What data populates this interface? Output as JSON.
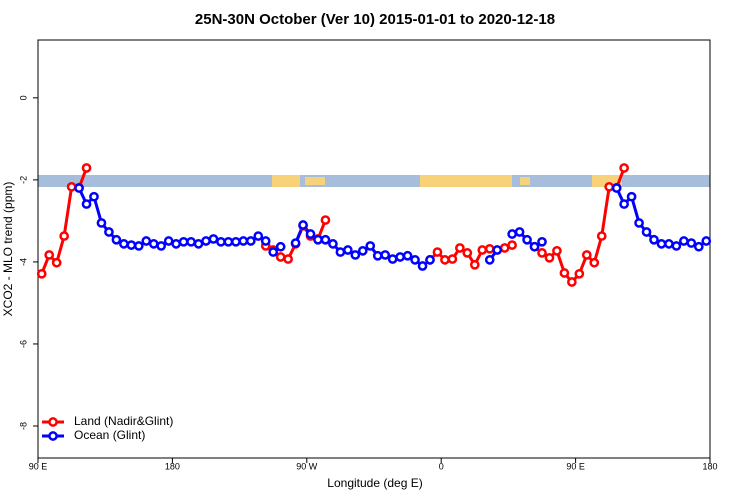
{
  "chart_data": {
    "type": "line",
    "title": "25N-30N October (Ver 10)   2015-01-01 to 2020-12-18",
    "x_label": "Longitude (deg E)",
    "y_label": "XCO2 - MLO trend (ppm)",
    "x": [
      92.5,
      97.5,
      102.5,
      107.5,
      112.5,
      117.5,
      122.5,
      127.5,
      132.5,
      137.5,
      142.5,
      147.5,
      152.5,
      157.5,
      162.5,
      167.5,
      172.5,
      177.5,
      182.5,
      187.5,
      192.5,
      197.5,
      202.5,
      207.5,
      212.5,
      217.5,
      222.5,
      227.5,
      232.5,
      237.5,
      242.5,
      247.5,
      252.5,
      257.5,
      262.5,
      267.5,
      272.5,
      277.5,
      282.5,
      287.5,
      292.5,
      297.5,
      302.5,
      307.5,
      312.5,
      317.5,
      322.5,
      327.5,
      332.5,
      337.5,
      342.5,
      347.5,
      352.5,
      357.5,
      362.5,
      367.5,
      372.5,
      377.5,
      382.5,
      387.5,
      392.5,
      397.5,
      402.5,
      407.5,
      412.5,
      417.5,
      422.5,
      427.5,
      432.5,
      437.5,
      442.5,
      447.5,
      452.5,
      457.5,
      462.5,
      467.5,
      472.5,
      477.5,
      482.5,
      487.5,
      492.5,
      497.5,
      502.5,
      507.5,
      512.5,
      517.5,
      522.5,
      527.5,
      532.5,
      537.5
    ],
    "series": [
      {
        "name": "Land (Nadir&Glint)",
        "color": "#ff0000",
        "values": [
          -4.29,
          -3.83,
          -4.02,
          -3.37,
          -2.17,
          -2.19,
          -1.71,
          null,
          null,
          null,
          null,
          null,
          null,
          null,
          null,
          null,
          null,
          null,
          null,
          null,
          null,
          null,
          null,
          null,
          null,
          null,
          null,
          null,
          null,
          null,
          -3.61,
          -3.71,
          -3.88,
          -3.93,
          -3.56,
          -3.12,
          -3.37,
          -3.44,
          -2.98,
          null,
          null,
          null,
          null,
          null,
          null,
          null,
          null,
          null,
          null,
          null,
          null,
          null,
          -3.95,
          -3.76,
          -3.95,
          -3.93,
          -3.66,
          -3.78,
          -4.07,
          -3.71,
          -3.68,
          null,
          -3.66,
          -3.59,
          null,
          null,
          -3.63,
          -3.78,
          -3.9,
          -3.73,
          -4.27,
          -4.49,
          -4.29,
          -3.83,
          -4.02,
          -3.37,
          -2.17,
          -2.19,
          -1.71,
          null,
          null,
          null,
          null,
          null,
          null,
          null,
          null,
          null,
          null,
          null
        ]
      },
      {
        "name": "Ocean (Glint)",
        "color": "#0000ff",
        "values": [
          null,
          null,
          null,
          null,
          null,
          -2.2,
          -2.59,
          -2.41,
          -3.05,
          -3.27,
          -3.46,
          -3.56,
          -3.59,
          -3.61,
          -3.49,
          -3.56,
          -3.61,
          -3.49,
          -3.56,
          -3.51,
          -3.51,
          -3.56,
          -3.49,
          -3.44,
          -3.51,
          -3.51,
          -3.51,
          -3.49,
          -3.49,
          -3.37,
          -3.49,
          -3.76,
          -3.63,
          null,
          -3.54,
          -3.1,
          -3.32,
          -3.46,
          -3.46,
          -3.56,
          -3.76,
          -3.71,
          -3.83,
          -3.73,
          -3.61,
          -3.85,
          -3.83,
          -3.93,
          -3.88,
          -3.85,
          -3.95,
          -4.1,
          -3.95,
          null,
          null,
          null,
          null,
          null,
          null,
          null,
          -3.95,
          -3.71,
          null,
          -3.32,
          -3.27,
          -3.46,
          -3.63,
          -3.51,
          null,
          null,
          null,
          null,
          null,
          null,
          null,
          null,
          null,
          -2.2,
          -2.59,
          -2.41,
          -3.05,
          -3.27,
          -3.46,
          -3.56,
          -3.56,
          -3.61,
          -3.49,
          -3.54,
          -3.63,
          -3.49
        ]
      }
    ],
    "xlim": [
      90,
      540
    ],
    "xticks": [
      {
        "value": 90,
        "label": "90 E"
      },
      180,
      {
        "value": 270,
        "label": "90 W"
      },
      {
        "value": 360,
        "label": "0"
      },
      {
        "value": 450,
        "label": "90 E"
      },
      {
        "value": 540,
        "label": "180"
      }
    ],
    "ylim": [
      -8.78,
      1.41
    ],
    "yticks": [
      0,
      -2,
      -4,
      -6,
      -8
    ],
    "legend": "bottom-left"
  }
}
